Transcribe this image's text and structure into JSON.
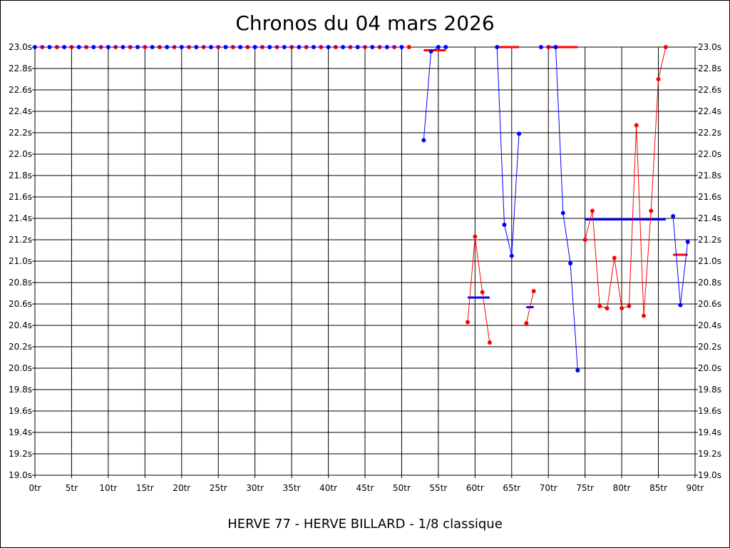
{
  "chart_data": {
    "type": "line",
    "title": "Chronos du 04 mars 2026",
    "subtitle": "HERVE 77 - HERVE BILLARD - 1/8 classique",
    "ylim": [
      19.0,
      23.0
    ],
    "xlim": [
      0,
      90
    ],
    "y_ticks": [
      "23.0s",
      "22.8s",
      "22.6s",
      "22.4s",
      "22.2s",
      "22.0s",
      "21.8s",
      "21.6s",
      "21.4s",
      "21.2s",
      "21.0s",
      "20.8s",
      "20.6s",
      "20.4s",
      "20.2s",
      "20.0s",
      "19.8s",
      "19.6s",
      "19.4s",
      "19.2s",
      "19.0s"
    ],
    "x_ticks": [
      "0tr",
      "5tr",
      "10tr",
      "15tr",
      "20tr",
      "25tr",
      "30tr",
      "35tr",
      "40tr",
      "45tr",
      "50tr",
      "55tr",
      "60tr",
      "65tr",
      "70tr",
      "75tr",
      "80tr",
      "85tr",
      "90tr"
    ],
    "grid": true,
    "colors": {
      "red": "#ff0000",
      "blue": "#0000ff"
    },
    "series": [
      {
        "color": "red",
        "segments": [
          [
            [
              1,
              23.0
            ],
            [
              3,
              23.0
            ],
            [
              5,
              23.0
            ],
            [
              7,
              23.0
            ],
            [
              9,
              23.0
            ],
            [
              11,
              23.0
            ],
            [
              13,
              23.0
            ],
            [
              15,
              23.0
            ],
            [
              17,
              23.0
            ],
            [
              19,
              23.0
            ],
            [
              21,
              23.0
            ],
            [
              23,
              23.0
            ],
            [
              25,
              23.0
            ],
            [
              27,
              23.0
            ],
            [
              29,
              23.0
            ],
            [
              31,
              23.0
            ],
            [
              33,
              23.0
            ],
            [
              35,
              23.0
            ],
            [
              37,
              23.0
            ],
            [
              39,
              23.0
            ],
            [
              41,
              23.0
            ],
            [
              43,
              23.0
            ],
            [
              45,
              23.0
            ],
            [
              47,
              23.0
            ],
            [
              49,
              23.0
            ],
            [
              51,
              23.0
            ]
          ],
          [
            [
              59,
              20.43
            ],
            [
              60,
              21.23
            ],
            [
              61,
              20.71
            ],
            [
              62,
              20.24
            ]
          ],
          [
            [
              67,
              20.42
            ],
            [
              68,
              20.72
            ]
          ],
          [
            [
              70,
              23.0
            ]
          ],
          [
            [
              75,
              21.2
            ],
            [
              76,
              21.47
            ],
            [
              77,
              20.58
            ],
            [
              78,
              20.56
            ],
            [
              79,
              21.03
            ],
            [
              80,
              20.56
            ],
            [
              81,
              20.58
            ],
            [
              82,
              22.27
            ],
            [
              83,
              20.49
            ],
            [
              84,
              21.47
            ],
            [
              85,
              22.7
            ],
            [
              86,
              23.0
            ]
          ]
        ]
      },
      {
        "color": "blue",
        "segments": [
          [
            [
              0,
              23.0
            ],
            [
              2,
              23.0
            ],
            [
              4,
              23.0
            ],
            [
              6,
              23.0
            ],
            [
              8,
              23.0
            ],
            [
              10,
              23.0
            ],
            [
              12,
              23.0
            ],
            [
              14,
              23.0
            ],
            [
              16,
              23.0
            ],
            [
              18,
              23.0
            ],
            [
              20,
              23.0
            ],
            [
              22,
              23.0
            ],
            [
              24,
              23.0
            ],
            [
              26,
              23.0
            ],
            [
              28,
              23.0
            ],
            [
              30,
              23.0
            ],
            [
              32,
              23.0
            ],
            [
              34,
              23.0
            ],
            [
              36,
              23.0
            ],
            [
              38,
              23.0
            ],
            [
              40,
              23.0
            ],
            [
              42,
              23.0
            ],
            [
              44,
              23.0
            ],
            [
              46,
              23.0
            ],
            [
              48,
              23.0
            ],
            [
              50,
              23.0
            ]
          ],
          [
            [
              53,
              22.13
            ],
            [
              54,
              22.96
            ],
            [
              55,
              23.0
            ],
            [
              56,
              23.0
            ]
          ],
          [
            [
              63,
              23.0
            ],
            [
              64,
              21.34
            ],
            [
              65,
              21.05
            ],
            [
              66,
              22.19
            ]
          ],
          [
            [
              69,
              23.0
            ],
            [
              71,
              23.0
            ],
            [
              72,
              21.45
            ],
            [
              73,
              20.98
            ],
            [
              74,
              19.98
            ]
          ],
          [
            [
              87,
              21.42
            ],
            [
              88,
              20.59
            ],
            [
              89,
              21.18
            ]
          ]
        ]
      }
    ],
    "averages": [
      {
        "color": "red",
        "x1": 53,
        "x2": 56,
        "y": 22.97
      },
      {
        "color": "red",
        "x1": 63,
        "x2": 66,
        "y": 23.0
      },
      {
        "color": "red",
        "x1": 70,
        "x2": 74,
        "y": 23.0
      },
      {
        "color": "red",
        "x1": 87,
        "x2": 89,
        "y": 21.06
      },
      {
        "color": "blue",
        "x1": 59,
        "x2": 62,
        "y": 20.66
      },
      {
        "color": "blue",
        "x1": 67,
        "x2": 68,
        "y": 20.57
      },
      {
        "color": "blue",
        "x1": 75,
        "x2": 86,
        "y": 21.39
      }
    ]
  }
}
